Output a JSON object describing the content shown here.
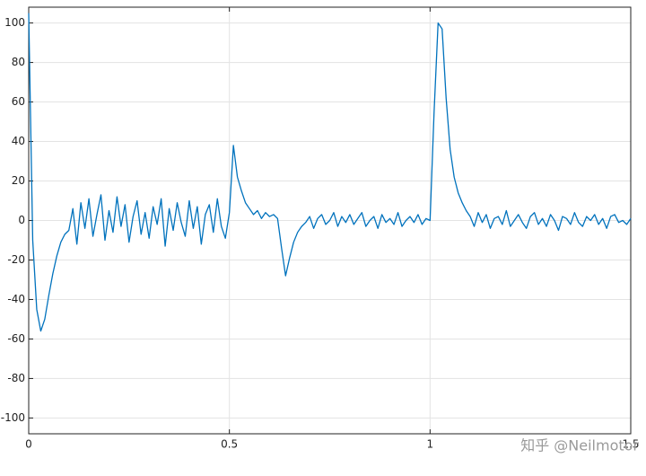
{
  "chart_data": {
    "type": "line",
    "x": [
      0,
      0.01,
      0.02,
      0.03,
      0.04,
      0.05,
      0.06,
      0.07,
      0.08,
      0.09,
      0.1,
      0.11,
      0.12,
      0.13,
      0.14,
      0.15,
      0.16,
      0.17,
      0.18,
      0.19,
      0.2,
      0.21,
      0.22,
      0.23,
      0.24,
      0.25,
      0.26,
      0.27,
      0.28,
      0.29,
      0.3,
      0.31,
      0.32,
      0.33,
      0.34,
      0.35,
      0.36,
      0.37,
      0.38,
      0.39,
      0.4,
      0.41,
      0.42,
      0.43,
      0.44,
      0.45,
      0.46,
      0.47,
      0.48,
      0.49,
      0.5,
      0.51,
      0.52,
      0.53,
      0.54,
      0.55,
      0.56,
      0.57,
      0.58,
      0.59,
      0.6,
      0.61,
      0.62,
      0.63,
      0.64,
      0.65,
      0.66,
      0.67,
      0.68,
      0.69,
      0.7,
      0.71,
      0.72,
      0.73,
      0.74,
      0.75,
      0.76,
      0.77,
      0.78,
      0.79,
      0.8,
      0.81,
      0.82,
      0.83,
      0.84,
      0.85,
      0.86,
      0.87,
      0.88,
      0.89,
      0.9,
      0.91,
      0.92,
      0.93,
      0.94,
      0.95,
      0.96,
      0.97,
      0.98,
      0.99,
      1,
      1.01,
      1.02,
      1.03,
      1.04,
      1.05,
      1.06,
      1.07,
      1.08,
      1.09,
      1.1,
      1.11,
      1.12,
      1.13,
      1.14,
      1.15,
      1.16,
      1.17,
      1.18,
      1.19,
      1.2,
      1.21,
      1.22,
      1.23,
      1.24,
      1.25,
      1.26,
      1.27,
      1.28,
      1.29,
      1.3,
      1.31,
      1.32,
      1.33,
      1.34,
      1.35,
      1.36,
      1.37,
      1.38,
      1.39,
      1.4,
      1.41,
      1.42,
      1.43,
      1.44,
      1.45,
      1.46,
      1.47,
      1.48,
      1.49,
      1.5
    ],
    "values": [
      105,
      -10,
      -45,
      -56,
      -50,
      -38,
      -27,
      -18,
      -11,
      -7,
      -5,
      6,
      -12,
      9,
      -4,
      11,
      -8,
      3,
      13,
      -10,
      5,
      -6,
      12,
      -3,
      8,
      -11,
      2,
      10,
      -7,
      4,
      -9,
      7,
      -2,
      11,
      -13,
      6,
      -5,
      9,
      -1,
      -8,
      10,
      -4,
      7,
      -12,
      3,
      8,
      -6,
      11,
      -3,
      -9,
      4,
      38,
      22,
      15,
      9,
      6,
      3,
      5,
      1,
      4,
      2,
      3,
      1,
      -14,
      -28,
      -19,
      -11,
      -6,
      -3,
      -1,
      2,
      -4,
      1,
      3,
      -2,
      0,
      4,
      -3,
      2,
      -1,
      3,
      -2,
      1,
      4,
      -3,
      0,
      2,
      -4,
      3,
      -1,
      1,
      -2,
      4,
      -3,
      0,
      2,
      -1,
      3,
      -2,
      1,
      0,
      55,
      100,
      97,
      62,
      36,
      22,
      14,
      9,
      5,
      2,
      -3,
      4,
      -1,
      3,
      -4,
      1,
      2,
      -2,
      5,
      -3,
      0,
      3,
      -1,
      -4,
      2,
      4,
      -2,
      1,
      -3,
      3,
      0,
      -5,
      2,
      1,
      -2,
      4,
      -1,
      -3,
      2,
      0,
      3,
      -2,
      1,
      -4,
      2,
      3,
      -1,
      0,
      -2,
      1
    ],
    "color": "#0072bd",
    "xlim": [
      0,
      1.5
    ],
    "ylim": [
      -108,
      108
    ],
    "xticks": [
      0,
      0.5,
      1,
      1.5
    ],
    "yticks": [
      -100,
      -80,
      -60,
      -40,
      -20,
      0,
      20,
      40,
      60,
      80,
      100
    ],
    "grid": true,
    "watermark": "知乎 @Neilmotor"
  }
}
